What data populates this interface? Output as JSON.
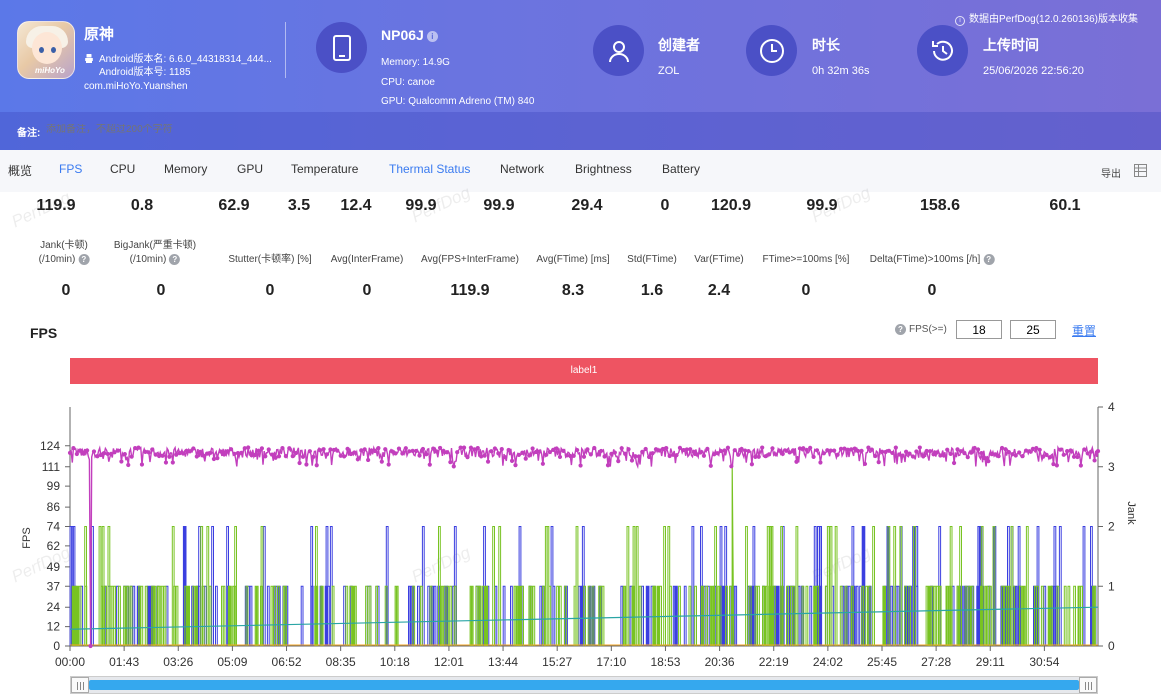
{
  "header": {
    "app_name": "原神",
    "version_name": "Android版本名: 6.6.0_44318314_444...",
    "version_code": "Android版本号: 1185",
    "package": "com.miHoYo.Yuanshen",
    "app_icon_brand": "miHoYo",
    "device_name": "NP06J",
    "memory": "Memory: 14.9G",
    "cpu": "CPU: canoe",
    "gpu": "GPU: Qualcomm Adreno (TM) 840",
    "creator_title": "创建者",
    "creator_value": "ZOL",
    "duration_title": "时长",
    "duration_value": "0h 32m 36s",
    "upload_title": "上传时间",
    "upload_value": "25/06/2026 22:56:20",
    "source_note": "数据由PerfDog(12.0.260136)版本收集",
    "note_label": "备注:",
    "note_placeholder": "添加备注，不超过200个字符"
  },
  "tabs": [
    {
      "label": "概览"
    },
    {
      "label": "FPS"
    },
    {
      "label": "CPU"
    },
    {
      "label": "Memory"
    },
    {
      "label": "GPU"
    },
    {
      "label": "Temperature"
    },
    {
      "label": "Thermal Status"
    },
    {
      "label": "Network"
    },
    {
      "label": "Brightness"
    },
    {
      "label": "Battery"
    }
  ],
  "export_label": "导出",
  "stats_top": [
    "119.9",
    "0.8",
    "62.9",
    "3.5",
    "12.4",
    "99.9",
    "99.9",
    "29.4",
    "0",
    "120.9",
    "99.9",
    "158.6",
    "60.1"
  ],
  "stats_labels": [
    {
      "line1": "Jank(卡顿)",
      "line2": "(/10min)",
      "help": true
    },
    {
      "line1": "BigJank(严重卡顿)",
      "line2": "(/10min)",
      "help": true
    },
    {
      "line1": "Stutter(卡顿率) [%]",
      "line2": "",
      "help": false
    },
    {
      "line1": "Avg(InterFrame)",
      "line2": "",
      "help": false
    },
    {
      "line1": "Avg(FPS+InterFrame)",
      "line2": "",
      "help": false
    },
    {
      "line1": "Avg(FTime) [ms]",
      "line2": "",
      "help": false
    },
    {
      "line1": "Std(FTime)",
      "line2": "",
      "help": false
    },
    {
      "line1": "Var(FTime)",
      "line2": "",
      "help": false
    },
    {
      "line1": "FTime>=100ms [%]",
      "line2": "",
      "help": false
    },
    {
      "line1": "Delta(FTime)>100ms [/h]",
      "line2": "",
      "help": true
    }
  ],
  "stats_values": [
    "0",
    "0",
    "0",
    "0",
    "119.9",
    "8.3",
    "1.6",
    "2.4",
    "0",
    "0"
  ],
  "fps_section": {
    "title": "FPS",
    "option_label": "FPS(>=)",
    "threshold1": "18",
    "threshold2": "25",
    "reset_label": "重置",
    "label_bar": "label1"
  },
  "watermark": "PerfDog",
  "chart_data": {
    "type": "line",
    "x_ticks": [
      "00:00",
      "01:43",
      "03:26",
      "05:09",
      "06:52",
      "08:35",
      "10:18",
      "12:01",
      "13:44",
      "15:27",
      "17:10",
      "18:53",
      "20:36",
      "22:19",
      "24:02",
      "25:45",
      "27:28",
      "29:11",
      "30:54"
    ],
    "x_range_seconds": [
      0,
      1956
    ],
    "y_left_label": "FPS",
    "y_left_ticks": [
      0,
      12,
      24,
      37,
      49,
      62,
      74,
      86,
      99,
      111,
      124
    ],
    "y_left_range": [
      0,
      148
    ],
    "y_right_label": "Jank",
    "y_right_ticks": [
      0,
      1,
      2,
      3,
      4
    ],
    "y_right_range": [
      0,
      4
    ],
    "series": [
      {
        "name": "FPS",
        "color": "#c23fbd",
        "axis": "left",
        "typical": 119.9,
        "range": [
          111,
          124
        ],
        "dips": [
          {
            "t": 40,
            "v": 0
          },
          {
            "t": 1260,
            "v": 112
          }
        ]
      },
      {
        "name": "Jank",
        "color": "#78c322",
        "axis": "right",
        "levels": [
          0,
          1,
          2
        ],
        "spike": {
          "t": 1260,
          "v": 3
        }
      },
      {
        "name": "BigJank",
        "color": "#3b3fe0",
        "axis": "right",
        "levels": [
          0,
          1,
          2
        ]
      },
      {
        "name": "Stutter",
        "color": "#2aa5a5",
        "axis": "right",
        "start": 0.28,
        "end": 0.65
      }
    ],
    "grid": false,
    "legend": "none"
  }
}
